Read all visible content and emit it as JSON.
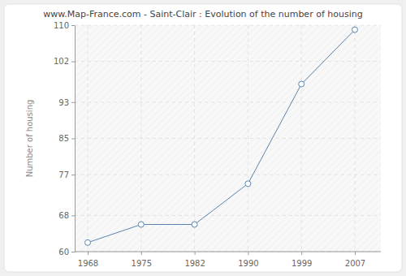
{
  "chart_data": {
    "type": "line",
    "title": "www.Map-France.com - Saint-Clair : Evolution of the number of housing",
    "y_label": "Number of housing",
    "categories": [
      "1968",
      "1975",
      "1982",
      "1990",
      "1999",
      "2007"
    ],
    "values": [
      62,
      66,
      66,
      75,
      97,
      109
    ],
    "color": "#5b84ad",
    "marker": "circle",
    "ylim": [
      60,
      110
    ],
    "yticks": [
      60,
      68,
      77,
      85,
      93,
      102,
      110
    ],
    "grid": true
  }
}
